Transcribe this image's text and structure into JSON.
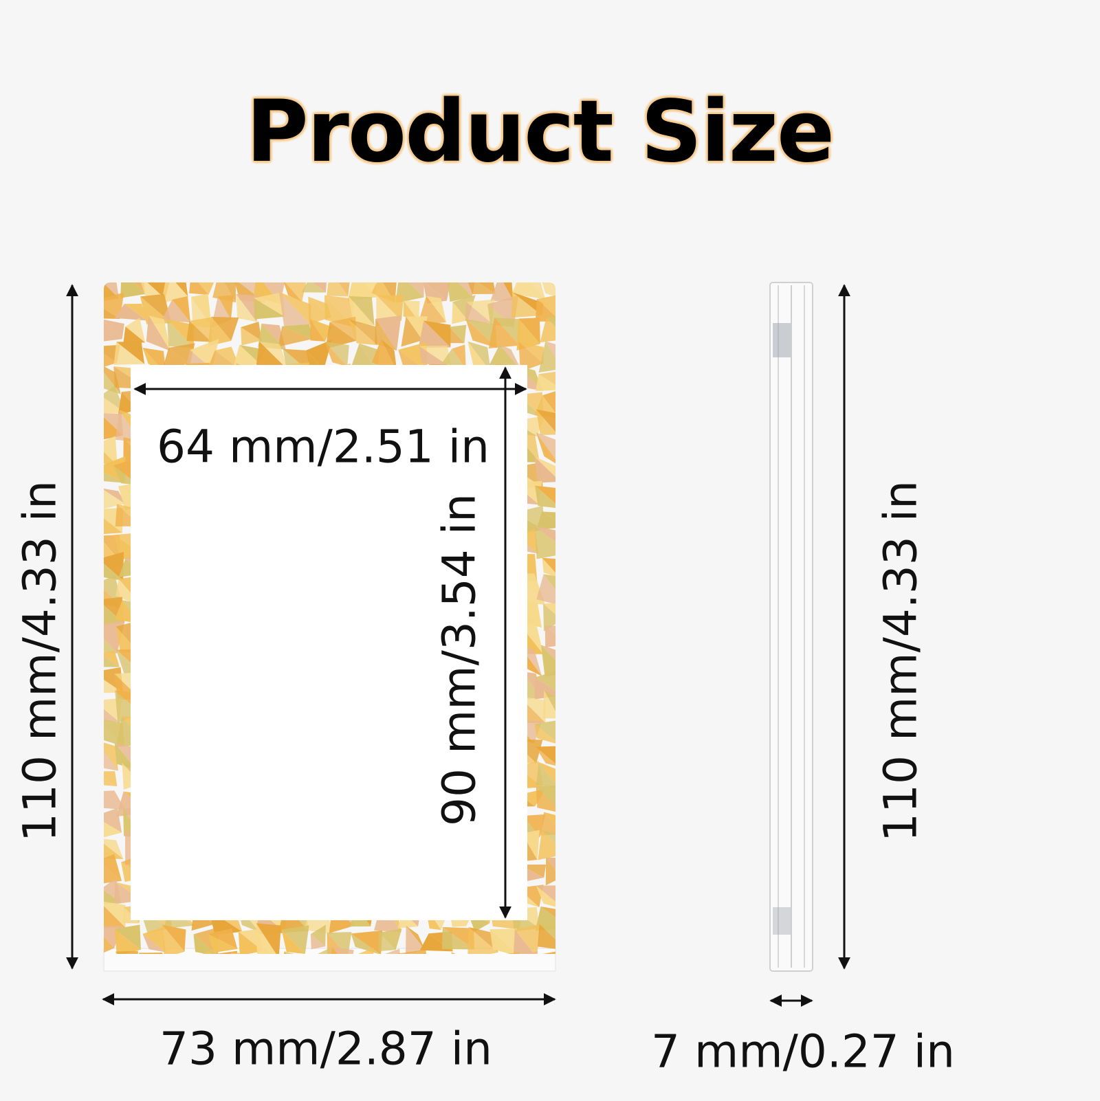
{
  "title": "Product Size",
  "dimensions": {
    "card_height": "110 mm/4.33 in",
    "inner_width": "64 mm/2.51 in",
    "inner_height": "90 mm/3.54 in",
    "card_width": "73 mm/2.87 in",
    "side_height": "110 mm/4.33 in",
    "thickness": "7 mm/0.27 in"
  },
  "colors": {
    "background": "#f6f6f6",
    "title_glow": "#f6c98a",
    "holo_frame": [
      "#f3c15a",
      "#e8a63a",
      "#f7d98a",
      "#e9b98f",
      "#f0b04a",
      "#d9c36a"
    ]
  }
}
